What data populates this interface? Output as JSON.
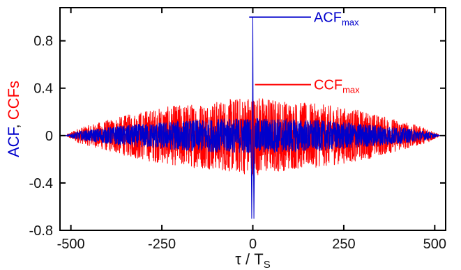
{
  "chart_data": {
    "type": "line",
    "xlabel": {
      "prefix": "τ / T",
      "subscript": "S"
    },
    "ylabel": {
      "part1": "ACF",
      "separator": ", ",
      "part2": "CCFs"
    },
    "xlim": [
      -530,
      530
    ],
    "ylim": [
      -0.8,
      1.08
    ],
    "x_ticks": [
      -500,
      -250,
      0,
      250,
      500
    ],
    "x_tick_labels": [
      "-500",
      "-250",
      "0",
      "250",
      "500"
    ],
    "y_ticks": [
      -0.8,
      -0.4,
      0,
      0.4,
      0.8
    ],
    "y_tick_labels": [
      "-0.8",
      "-0.4",
      "0",
      "0.4",
      "0.8"
    ],
    "grid": false,
    "colors": {
      "acf": "#0000cc",
      "ccf": "#ff0000",
      "axes": "#000000"
    },
    "series": [
      {
        "key": "ccf",
        "color": "#ff0000",
        "extent": [
          -511,
          511
        ],
        "envelope": [
          [
            -511,
            0.01
          ],
          [
            -480,
            0.06
          ],
          [
            -400,
            0.13
          ],
          [
            -300,
            0.21
          ],
          [
            -200,
            0.26
          ],
          [
            -100,
            0.29
          ],
          [
            0,
            0.34
          ],
          [
            100,
            0.29
          ],
          [
            200,
            0.26
          ],
          [
            300,
            0.21
          ],
          [
            400,
            0.13
          ],
          [
            480,
            0.06
          ],
          [
            511,
            0.01
          ]
        ]
      },
      {
        "key": "acf",
        "color": "#0000cc",
        "extent": [
          -511,
          511
        ],
        "peak": {
          "x": 0,
          "y": 1.0
        },
        "side_dips": [
          {
            "x": -3,
            "y": -0.7
          },
          {
            "x": 3,
            "y": -0.7
          }
        ],
        "envelope": [
          [
            -511,
            0.005
          ],
          [
            -480,
            0.035
          ],
          [
            -400,
            0.07
          ],
          [
            -300,
            0.1
          ],
          [
            -200,
            0.125
          ],
          [
            -100,
            0.14
          ],
          [
            0,
            0.15
          ],
          [
            100,
            0.14
          ],
          [
            200,
            0.125
          ],
          [
            300,
            0.1
          ],
          [
            400,
            0.07
          ],
          [
            480,
            0.035
          ],
          [
            511,
            0.005
          ]
        ]
      }
    ],
    "annotations": [
      {
        "key": "acf_max",
        "text": "ACF",
        "sub": "max",
        "color": "#0000cc",
        "y": 1.0,
        "line_from_x": -10,
        "line_to_x": 160
      },
      {
        "key": "ccf_max",
        "text": "CCF",
        "sub": "max",
        "color": "#ff0000",
        "y": 0.43,
        "line_from_x": 6,
        "line_to_x": 160
      }
    ]
  }
}
